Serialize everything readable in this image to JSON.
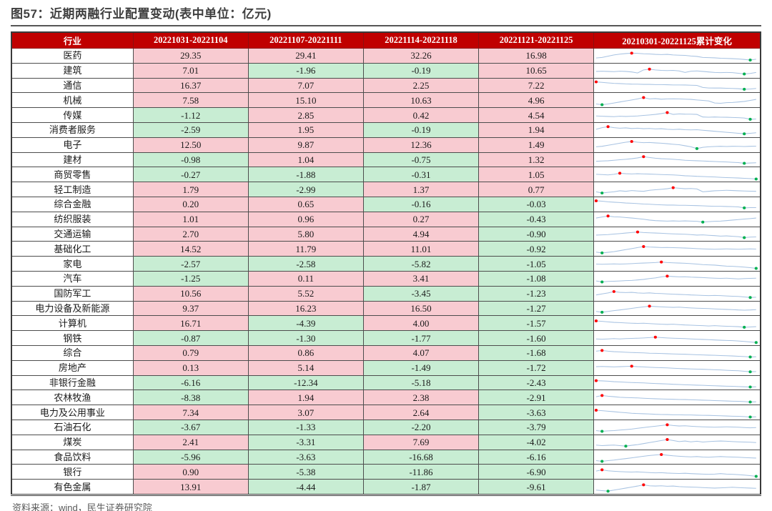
{
  "meta": {
    "title": "图57：近期两融行业配置变动(表中单位：亿元)",
    "source": "资料来源：wind，民生证券研究院",
    "unit": "亿元"
  },
  "colors": {
    "title_text": "#3F3F3F",
    "header_bg": "#C00000",
    "header_text": "#FFFFFF",
    "positive_bg": "#F8CBD1",
    "negative_bg": "#C8EDD3",
    "spark_line": "#A8C3E2",
    "spark_max_dot": "#FF0000",
    "spark_min_dot": "#00B050"
  },
  "chart_data": {
    "type": "table",
    "title": "图57：近期两融行业配置变动(表中单位：亿元)",
    "columns": [
      "行业",
      "20221031-20221104",
      "20221107-20221111",
      "20221114-20221118",
      "20221121-20221125",
      "20210301-20221125累计变化"
    ],
    "rows": [
      {
        "industry": "医药",
        "values": [
          29.35,
          29.41,
          32.26,
          16.98
        ],
        "spark": [
          0.25,
          0.3,
          0.42,
          0.55,
          0.62,
          0.68,
          0.72,
          0.7,
          0.66,
          0.64,
          0.6,
          0.58,
          0.6,
          0.55,
          0.52,
          0.5,
          0.44,
          0.4,
          0.3,
          0.28,
          0.26,
          0.22,
          0.2,
          0.18,
          0.15,
          0.1,
          0.05,
          0.12
        ]
      },
      {
        "industry": "建筑",
        "values": [
          7.01,
          -1.96,
          -0.19,
          10.65
        ],
        "spark": [
          0.4,
          0.42,
          0.4,
          0.38,
          0.42,
          0.4,
          0.35,
          0.25,
          0.55,
          0.62,
          0.55,
          0.5,
          0.48,
          0.5,
          0.45,
          0.3,
          0.42,
          0.45,
          0.4,
          0.35,
          0.3,
          0.28,
          0.3,
          0.28,
          0.22,
          0.15,
          0.2,
          0.3
        ]
      },
      {
        "industry": "通信",
        "values": [
          16.37,
          7.07,
          2.25,
          7.22
        ],
        "spark": [
          0.85,
          0.8,
          0.75,
          0.7,
          0.68,
          0.65,
          0.63,
          0.62,
          0.6,
          0.6,
          0.58,
          0.58,
          0.57,
          0.55,
          0.55,
          0.54,
          0.52,
          0.5,
          0.3,
          0.25,
          0.24,
          0.24,
          0.22,
          0.2,
          0.18,
          0.12,
          0.15,
          0.2
        ]
      },
      {
        "industry": "机械",
        "values": [
          7.58,
          15.1,
          10.63,
          4.96
        ],
        "spark": [
          0.15,
          0.08,
          0.15,
          0.25,
          0.35,
          0.45,
          0.55,
          0.65,
          0.78,
          0.65,
          0.68,
          0.62,
          0.65,
          0.66,
          0.65,
          0.62,
          0.6,
          0.55,
          0.5,
          0.45,
          0.25,
          0.22,
          0.28,
          0.3,
          0.35,
          0.4,
          0.5,
          0.6
        ]
      },
      {
        "industry": "传媒",
        "values": [
          -1.12,
          2.85,
          0.42,
          4.54
        ],
        "spark": [
          0.45,
          0.42,
          0.4,
          0.38,
          0.42,
          0.4,
          0.42,
          0.45,
          0.5,
          0.55,
          0.6,
          0.68,
          0.78,
          0.6,
          0.65,
          0.63,
          0.62,
          0.6,
          0.35,
          0.33,
          0.35,
          0.33,
          0.32,
          0.3,
          0.28,
          0.25,
          0.12,
          0.15
        ]
      },
      {
        "industry": "消费者服务",
        "values": [
          -2.59,
          1.95,
          -0.19,
          1.94
        ],
        "spark": [
          0.55,
          0.7,
          0.8,
          0.7,
          0.65,
          0.68,
          0.62,
          0.65,
          0.6,
          0.62,
          0.58,
          0.6,
          0.55,
          0.52,
          0.55,
          0.5,
          0.48,
          0.5,
          0.45,
          0.4,
          0.35,
          0.3,
          0.25,
          0.2,
          0.15,
          0.1,
          0.15,
          0.2
        ]
      },
      {
        "industry": "电子",
        "values": [
          12.5,
          9.87,
          12.36,
          1.49
        ],
        "spark": [
          0.3,
          0.35,
          0.45,
          0.55,
          0.65,
          0.75,
          0.82,
          0.75,
          0.7,
          0.72,
          0.68,
          0.65,
          0.6,
          0.55,
          0.5,
          0.4,
          0.3,
          0.12,
          0.25,
          0.3,
          0.33,
          0.35,
          0.33,
          0.35,
          0.34,
          0.33,
          0.35,
          0.36
        ]
      },
      {
        "industry": "建材",
        "values": [
          -0.98,
          1.04,
          -0.75,
          1.32
        ],
        "spark": [
          0.35,
          0.38,
          0.4,
          0.45,
          0.5,
          0.55,
          0.6,
          0.68,
          0.8,
          0.72,
          0.65,
          0.6,
          0.58,
          0.55,
          0.5,
          0.45,
          0.42,
          0.4,
          0.38,
          0.35,
          0.33,
          0.3,
          0.28,
          0.25,
          0.22,
          0.15,
          0.18,
          0.2
        ]
      },
      {
        "industry": "商贸零售",
        "values": [
          -0.27,
          -1.88,
          -0.31,
          1.05
        ],
        "spark": [
          0.55,
          0.52,
          0.48,
          0.55,
          0.65,
          0.6,
          0.58,
          0.6,
          0.58,
          0.57,
          0.55,
          0.52,
          0.5,
          0.48,
          0.45,
          0.4,
          0.38,
          0.35,
          0.33,
          0.3,
          0.28,
          0.25,
          0.22,
          0.2,
          0.18,
          0.15,
          0.12,
          0.08
        ]
      },
      {
        "industry": "轻工制造",
        "values": [
          1.79,
          -2.99,
          1.37,
          0.77
        ],
        "spark": [
          0.3,
          0.18,
          0.25,
          0.3,
          0.4,
          0.35,
          0.42,
          0.38,
          0.35,
          0.45,
          0.5,
          0.55,
          0.6,
          0.7,
          0.65,
          0.6,
          0.62,
          0.58,
          0.3,
          0.35,
          0.4,
          0.42,
          0.45,
          0.43,
          0.4,
          0.38,
          0.36,
          0.35
        ]
      },
      {
        "industry": "综合金融",
        "values": [
          0.2,
          0.65,
          -0.16,
          -0.03
        ],
        "spark": [
          0.82,
          0.78,
          0.72,
          0.68,
          0.65,
          0.6,
          0.58,
          0.55,
          0.5,
          0.48,
          0.45,
          0.42,
          0.4,
          0.4,
          0.38,
          0.38,
          0.36,
          0.35,
          0.33,
          0.3,
          0.28,
          0.28,
          0.26,
          0.25,
          0.22,
          0.12,
          0.15,
          0.15
        ]
      },
      {
        "industry": "纺织服装",
        "values": [
          1.01,
          0.96,
          0.27,
          -0.43
        ],
        "spark": [
          0.6,
          0.7,
          0.8,
          0.72,
          0.7,
          0.65,
          0.6,
          0.55,
          0.48,
          0.4,
          0.35,
          0.32,
          0.3,
          0.32,
          0.3,
          0.32,
          0.3,
          0.28,
          0.2,
          0.25,
          0.28,
          0.3,
          0.35,
          0.4,
          0.45,
          0.5,
          0.55,
          0.6
        ]
      },
      {
        "industry": "交通运输",
        "values": [
          2.7,
          5.8,
          4.94,
          -0.9
        ],
        "spark": [
          0.4,
          0.42,
          0.45,
          0.5,
          0.55,
          0.6,
          0.65,
          0.7,
          0.65,
          0.62,
          0.6,
          0.58,
          0.55,
          0.52,
          0.5,
          0.48,
          0.45,
          0.4,
          0.42,
          0.38,
          0.35,
          0.3,
          0.32,
          0.28,
          0.25,
          0.15,
          0.2,
          0.22
        ]
      },
      {
        "industry": "基础化工",
        "values": [
          14.52,
          11.79,
          11.01,
          -0.92
        ],
        "spark": [
          0.2,
          0.12,
          0.18,
          0.25,
          0.35,
          0.45,
          0.55,
          0.65,
          0.75,
          0.7,
          0.68,
          0.65,
          0.66,
          0.64,
          0.62,
          0.6,
          0.58,
          0.55,
          0.52,
          0.5,
          0.48,
          0.5,
          0.52,
          0.5,
          0.48,
          0.5,
          0.52,
          0.5
        ]
      },
      {
        "industry": "家电",
        "values": [
          -2.57,
          -2.58,
          -5.82,
          -1.05
        ],
        "spark": [
          0.5,
          0.48,
          0.5,
          0.52,
          0.5,
          0.52,
          0.55,
          0.58,
          0.6,
          0.62,
          0.65,
          0.7,
          0.65,
          0.62,
          0.6,
          0.58,
          0.55,
          0.5,
          0.45,
          0.42,
          0.4,
          0.35,
          0.3,
          0.28,
          0.25,
          0.2,
          0.15,
          0.08
        ]
      },
      {
        "industry": "汽车",
        "values": [
          -1.25,
          0.11,
          3.41,
          -1.08
        ],
        "spark": [
          0.25,
          0.15,
          0.2,
          0.22,
          0.25,
          0.28,
          0.3,
          0.35,
          0.4,
          0.48,
          0.55,
          0.65,
          0.72,
          0.68,
          0.65,
          0.66,
          0.62,
          0.6,
          0.58,
          0.55,
          0.52,
          0.5,
          0.52,
          0.48,
          0.45,
          0.48,
          0.5,
          0.52
        ]
      },
      {
        "industry": "国防军工",
        "values": [
          10.56,
          5.52,
          -3.45,
          -1.23
        ],
        "spark": [
          0.35,
          0.45,
          0.55,
          0.68,
          0.6,
          0.58,
          0.6,
          0.55,
          0.52,
          0.55,
          0.5,
          0.48,
          0.45,
          0.42,
          0.4,
          0.38,
          0.35,
          0.33,
          0.3,
          0.28,
          0.3,
          0.28,
          0.25,
          0.22,
          0.2,
          0.15,
          0.1,
          0.12
        ]
      },
      {
        "industry": "电力设备及新能源",
        "values": [
          9.37,
          16.23,
          16.5,
          -1.27
        ],
        "spark": [
          0.2,
          0.12,
          0.2,
          0.28,
          0.35,
          0.42,
          0.5,
          0.58,
          0.65,
          0.72,
          0.68,
          0.65,
          0.62,
          0.6,
          0.62,
          0.58,
          0.55,
          0.52,
          0.5,
          0.48,
          0.45,
          0.42,
          0.4,
          0.38,
          0.35,
          0.33,
          0.35,
          0.38
        ]
      },
      {
        "industry": "计算机",
        "values": [
          16.71,
          -4.39,
          4.0,
          -1.57
        ],
        "spark": [
          0.75,
          0.7,
          0.65,
          0.6,
          0.58,
          0.55,
          0.52,
          0.5,
          0.52,
          0.48,
          0.45,
          0.42,
          0.4,
          0.42,
          0.38,
          0.35,
          0.33,
          0.3,
          0.28,
          0.25,
          0.28,
          0.25,
          0.22,
          0.2,
          0.18,
          0.12,
          0.15,
          0.18
        ]
      },
      {
        "industry": "钢铁",
        "values": [
          -0.87,
          -1.3,
          -1.77,
          -1.6
        ],
        "spark": [
          0.45,
          0.42,
          0.45,
          0.48,
          0.45,
          0.48,
          0.5,
          0.52,
          0.55,
          0.58,
          0.62,
          0.58,
          0.55,
          0.52,
          0.5,
          0.48,
          0.45,
          0.42,
          0.4,
          0.38,
          0.35,
          0.32,
          0.3,
          0.28,
          0.25,
          0.2,
          0.15,
          0.1
        ]
      },
      {
        "industry": "综合",
        "values": [
          0.79,
          0.86,
          4.07,
          -1.68
        ],
        "spark": [
          0.65,
          0.72,
          0.65,
          0.6,
          0.58,
          0.55,
          0.52,
          0.5,
          0.48,
          0.45,
          0.44,
          0.42,
          0.4,
          0.38,
          0.36,
          0.35,
          0.33,
          0.3,
          0.28,
          0.26,
          0.25,
          0.22,
          0.2,
          0.18,
          0.15,
          0.12,
          0.08,
          0.1
        ]
      },
      {
        "industry": "房地产",
        "values": [
          0.13,
          5.14,
          -1.49,
          -1.72
        ],
        "spark": [
          0.6,
          0.62,
          0.6,
          0.58,
          0.6,
          0.62,
          0.65,
          0.6,
          0.58,
          0.55,
          0.52,
          0.5,
          0.48,
          0.45,
          0.42,
          0.4,
          0.38,
          0.36,
          0.35,
          0.33,
          0.3,
          0.28,
          0.25,
          0.22,
          0.2,
          0.15,
          0.1,
          0.12
        ]
      },
      {
        "industry": "非银行金融",
        "values": [
          -6.16,
          -12.34,
          -5.18,
          -2.43
        ],
        "spark": [
          0.7,
          0.68,
          0.65,
          0.6,
          0.58,
          0.55,
          0.52,
          0.5,
          0.48,
          0.45,
          0.42,
          0.4,
          0.38,
          0.35,
          0.33,
          0.3,
          0.28,
          0.26,
          0.25,
          0.22,
          0.2,
          0.18,
          0.16,
          0.15,
          0.12,
          0.1,
          0.08,
          0.1
        ]
      },
      {
        "industry": "农林牧渔",
        "values": [
          -8.38,
          1.94,
          2.38,
          -2.91
        ],
        "spark": [
          0.6,
          0.72,
          0.65,
          0.6,
          0.55,
          0.52,
          0.5,
          0.48,
          0.45,
          0.42,
          0.4,
          0.38,
          0.36,
          0.35,
          0.33,
          0.32,
          0.3,
          0.28,
          0.26,
          0.25,
          0.22,
          0.2,
          0.18,
          0.16,
          0.15,
          0.12,
          0.08,
          0.1
        ]
      },
      {
        "industry": "电力及公用事业",
        "values": [
          7.34,
          3.07,
          2.64,
          -3.63
        ],
        "spark": [
          0.75,
          0.7,
          0.65,
          0.6,
          0.55,
          0.5,
          0.45,
          0.42,
          0.4,
          0.38,
          0.35,
          0.33,
          0.32,
          0.3,
          0.3,
          0.28,
          0.28,
          0.26,
          0.25,
          0.24,
          0.22,
          0.2,
          0.18,
          0.16,
          0.15,
          0.12,
          0.08,
          0.1
        ]
      },
      {
        "industry": "石油石化",
        "values": [
          -3.67,
          -1.33,
          -2.2,
          -3.79
        ],
        "spark": [
          0.15,
          0.08,
          0.12,
          0.15,
          0.2,
          0.25,
          0.3,
          0.38,
          0.45,
          0.52,
          0.58,
          0.65,
          0.72,
          0.65,
          0.6,
          0.62,
          0.58,
          0.55,
          0.52,
          0.5,
          0.48,
          0.5,
          0.52,
          0.5,
          0.48,
          0.45,
          0.42,
          0.45
        ]
      },
      {
        "industry": "煤炭",
        "values": [
          2.41,
          -3.31,
          7.69,
          -4.02
        ],
        "spark": [
          0.2,
          0.15,
          0.18,
          0.2,
          0.15,
          0.1,
          0.18,
          0.25,
          0.35,
          0.45,
          0.55,
          0.65,
          0.75,
          0.65,
          0.55,
          0.6,
          0.52,
          0.58,
          0.5,
          0.55,
          0.58,
          0.6,
          0.58,
          0.55,
          0.52,
          0.5,
          0.48,
          0.45
        ]
      },
      {
        "industry": "食品饮料",
        "values": [
          -5.96,
          -3.63,
          -16.68,
          -6.16
        ],
        "spark": [
          0.15,
          0.08,
          0.15,
          0.2,
          0.28,
          0.35,
          0.42,
          0.5,
          0.58,
          0.65,
          0.7,
          0.75,
          0.68,
          0.62,
          0.58,
          0.55,
          0.52,
          0.55,
          0.5,
          0.48,
          0.52,
          0.55,
          0.52,
          0.5,
          0.48,
          0.45,
          0.42,
          0.4
        ]
      },
      {
        "industry": "银行",
        "values": [
          0.9,
          -5.38,
          -11.86,
          -6.9
        ],
        "spark": [
          0.6,
          0.72,
          0.62,
          0.58,
          0.55,
          0.52,
          0.5,
          0.52,
          0.48,
          0.45,
          0.42,
          0.44,
          0.4,
          0.38,
          0.36,
          0.38,
          0.35,
          0.32,
          0.3,
          0.28,
          0.3,
          0.35,
          0.3,
          0.28,
          0.25,
          0.2,
          0.15,
          0.08
        ]
      },
      {
        "industry": "有色金属",
        "values": [
          13.91,
          -4.44,
          -1.87,
          -9.61
        ],
        "spark": [
          0.2,
          0.15,
          0.1,
          0.2,
          0.3,
          0.4,
          0.5,
          0.6,
          0.72,
          0.62,
          0.6,
          0.62,
          0.58,
          0.6,
          0.55,
          0.52,
          0.5,
          0.48,
          0.45,
          0.42,
          0.4,
          0.42,
          0.45,
          0.48,
          0.45,
          0.42,
          0.4,
          0.38
        ]
      }
    ]
  }
}
